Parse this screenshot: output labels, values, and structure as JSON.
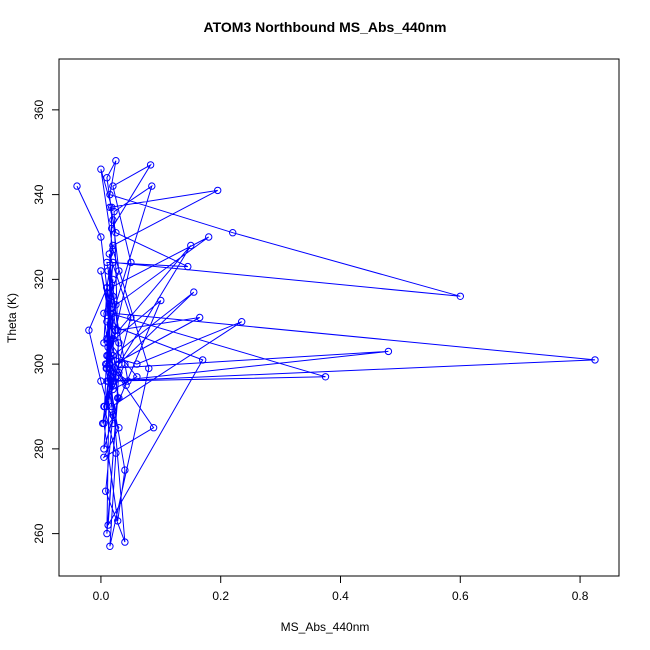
{
  "chart_data": {
    "type": "line",
    "title": "ATOM3 Northbound MS_Abs_440nm",
    "xlabel": "MS_Abs_440nm",
    "ylabel": "Theta (K)",
    "xlim": [
      -0.07,
      0.865
    ],
    "ylim": [
      250,
      372
    ],
    "xticks": [
      "0.0",
      "0.2",
      "0.4",
      "0.6",
      "0.8"
    ],
    "xtick_values": [
      0.0,
      0.2,
      0.4,
      0.6,
      0.8
    ],
    "yticks": [
      "260",
      "280",
      "300",
      "320",
      "340",
      "360"
    ],
    "ytick_values": [
      260,
      280,
      300,
      320,
      340,
      360
    ],
    "grid": false,
    "color": "#0000ff",
    "marker": "open-circle",
    "series": [
      {
        "x": [
          -0.04,
          0.0,
          0.01,
          -0.02,
          0.0,
          0.02,
          0.015,
          0.005,
          0.03,
          0.02,
          0.01,
          0.025,
          0.015,
          0.22,
          0.6,
          0.02,
          0.01,
          0.03,
          0.005,
          0.012,
          0.375,
          0.015,
          0.0,
          0.02,
          0.01,
          0.05,
          0.02,
          0.083,
          0.018,
          0.005,
          0.028,
          0.04,
          0.01,
          0.025,
          0.18,
          0.016,
          0.012,
          0.15,
          0.03,
          0.155,
          0.02,
          0.01,
          0.03,
          0.005,
          0.088,
          0.015,
          0.02,
          0.825,
          0.01,
          0.025,
          0.012,
          0.04,
          0.006,
          0.02,
          0.03,
          0.01,
          0.022,
          0.48,
          0.015,
          0.003,
          0.05,
          0.014,
          0.028,
          0.165,
          0.009,
          0.02,
          0.012,
          0.06,
          0.235,
          0.018,
          0.008,
          0.045,
          0.02,
          0.01,
          0.145,
          0.025,
          0.015,
          0.195,
          0.02,
          0.01,
          0.005,
          0.085,
          0.022,
          0.03,
          0.012,
          0.17,
          0.02,
          0.01,
          0.017,
          0.04,
          0.008,
          0.02,
          0.1,
          0.015,
          0.06,
          0.02,
          0.012,
          0.042,
          0.01,
          0.02,
          0.005,
          0.025,
          0.015,
          0.08,
          0.02,
          0.0,
          0.018,
          0.01,
          0.028,
          0.015
        ],
        "y": [
          342,
          330,
          318,
          308,
          296,
          286,
          300,
          312,
          322,
          334,
          344,
          348,
          340,
          331,
          316,
          324,
          306,
          292,
          280,
          296,
          297,
          312,
          322,
          306,
          299,
          324,
          342,
          347,
          332,
          286,
          263,
          275,
          300,
          314,
          330,
          318,
          305,
          328,
          300,
          317,
          302,
          290,
          285,
          278,
          285,
          300,
          312,
          301,
          296,
          308,
          322,
          300,
          290,
          296,
          305,
          310,
          296,
          303,
          299,
          286,
          311,
          326,
          308,
          311,
          299,
          320,
          302,
          300,
          310,
          290,
          300,
          296,
          316,
          324,
          323,
          331,
          337,
          341,
          328,
          318,
          305,
          342,
          336,
          298,
          262,
          301,
          309,
          318,
          296,
          258,
          270,
          288,
          315,
          305,
          297,
          294,
          304,
          295,
          302,
          297,
          290,
          279,
          257,
          299,
          327,
          346,
          337,
          260,
          292,
          313
        ]
      }
    ]
  }
}
